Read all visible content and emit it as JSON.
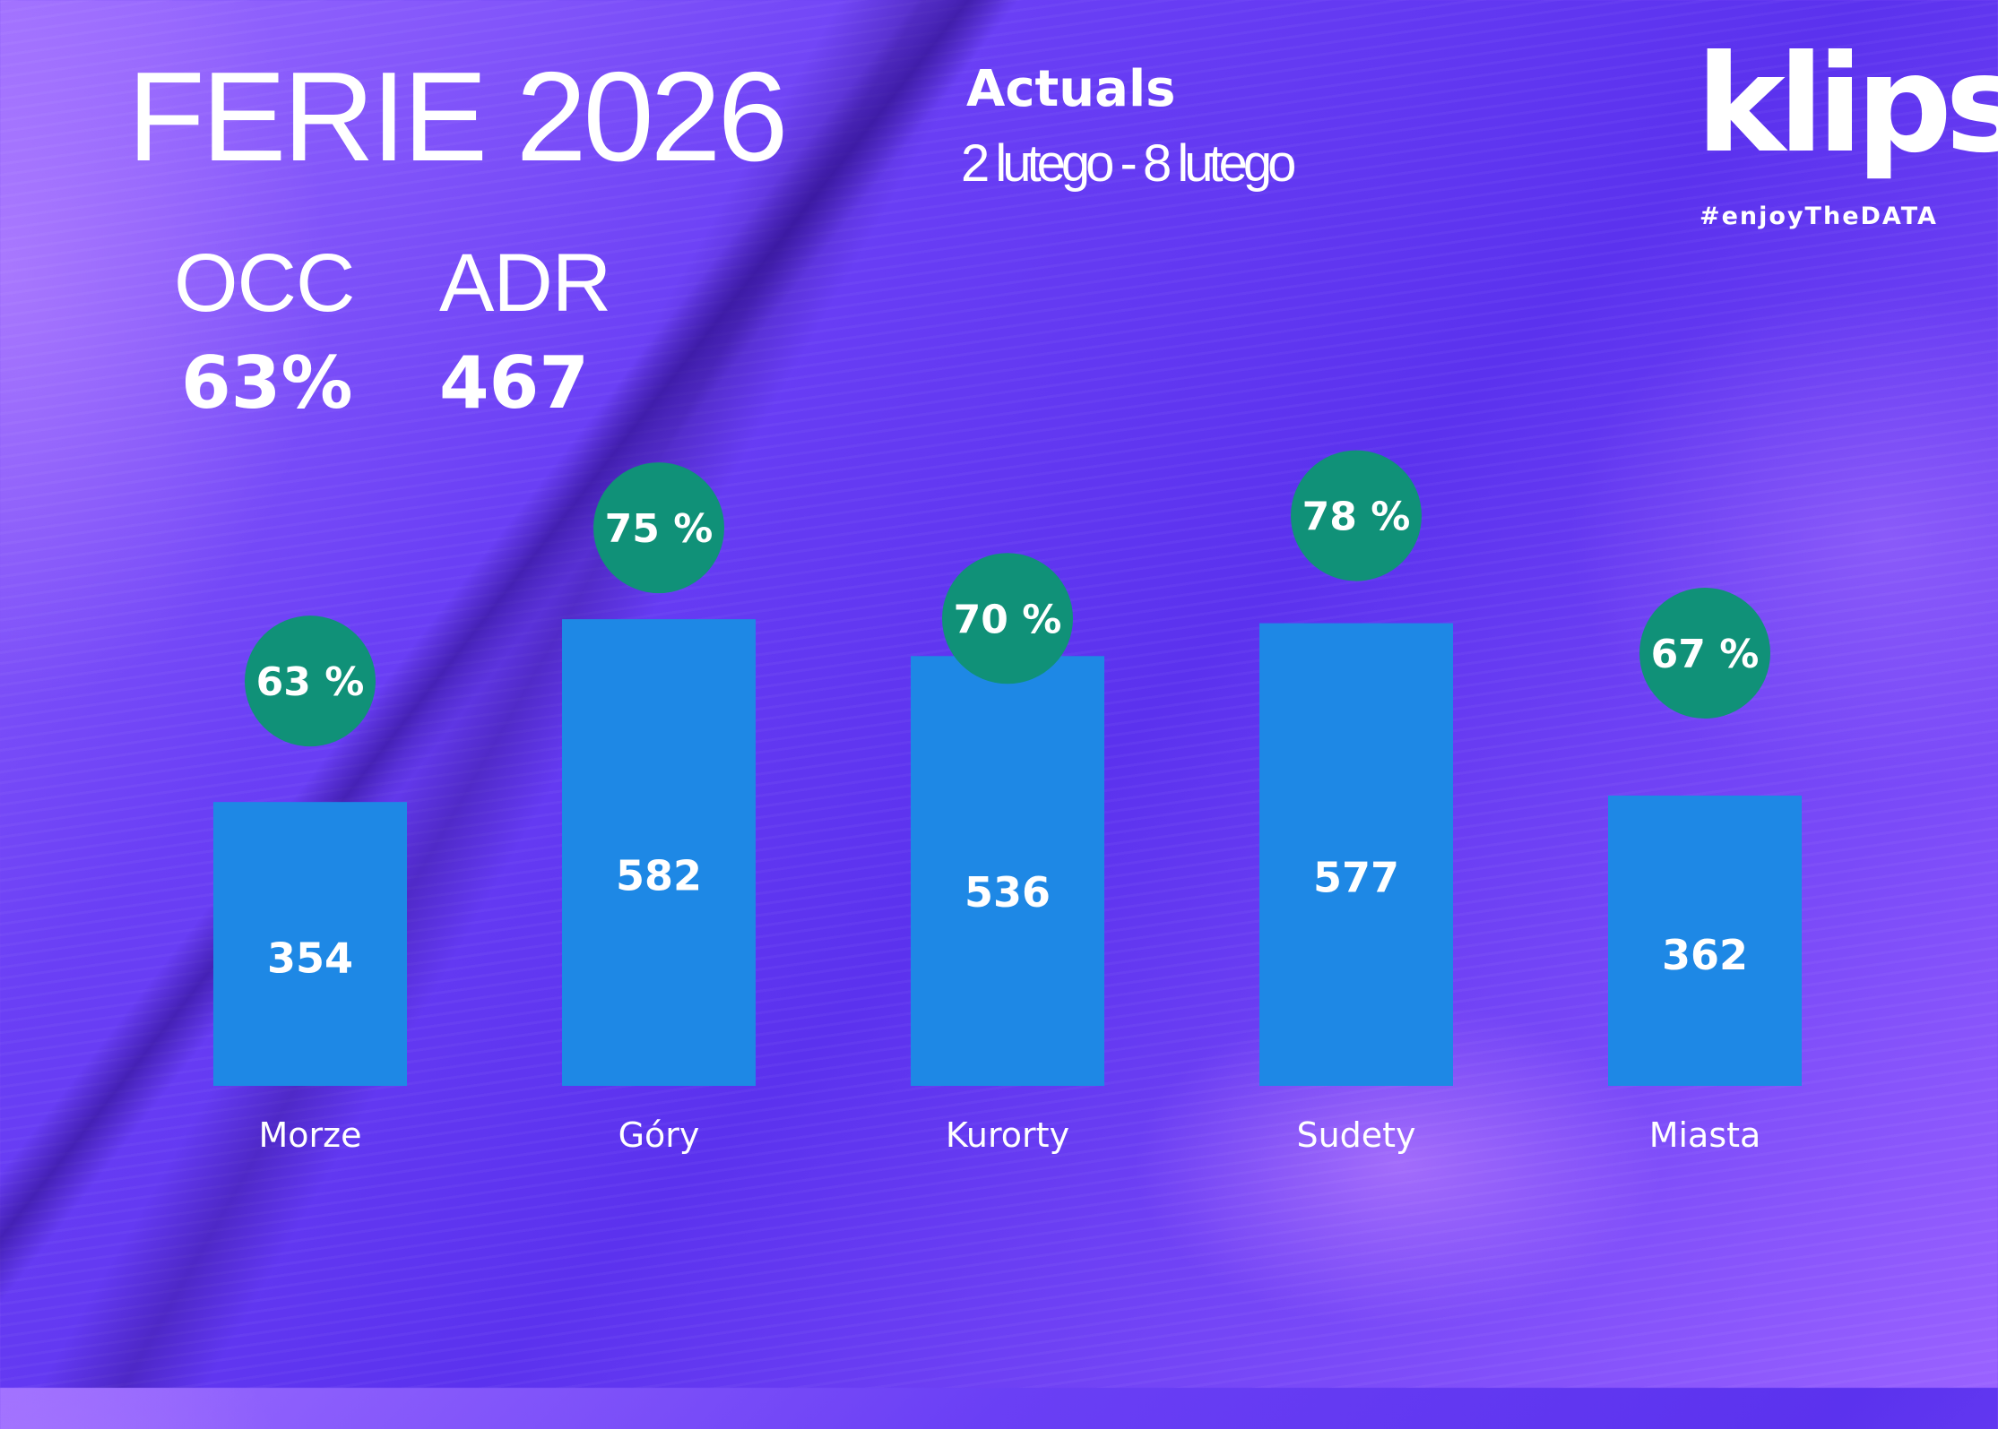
{
  "header": {
    "title": "FERIE 2026",
    "subtitle": "Actuals",
    "period": "2 lutego - 8 lutego"
  },
  "kpis": {
    "occ": {
      "label": "OCC",
      "value": "63%"
    },
    "adr": {
      "label": "ADR",
      "value": "467"
    }
  },
  "brand": {
    "logo": "klips",
    "tagline": "#enjoyTheDATA"
  },
  "colors": {
    "bar": "#1e88e5",
    "occupancy_badge": "#109178",
    "text": "#ffffff"
  },
  "chart_data": {
    "type": "bar",
    "categories": [
      "Morze",
      "Góry",
      "Kurorty",
      "Sudety",
      "Miasta"
    ],
    "series": [
      {
        "values": [
          354,
          582,
          536,
          577,
          362
        ]
      },
      {
        "values": [
          63,
          75,
          70,
          78,
          67
        ]
      }
    ],
    "bar_labels": [
      "354",
      "582",
      "536",
      "577",
      "362"
    ],
    "badge_labels": [
      "63 %",
      "75 %",
      "70 %",
      "78 %",
      "67 %"
    ],
    "legend": "none",
    "grid": false
  }
}
